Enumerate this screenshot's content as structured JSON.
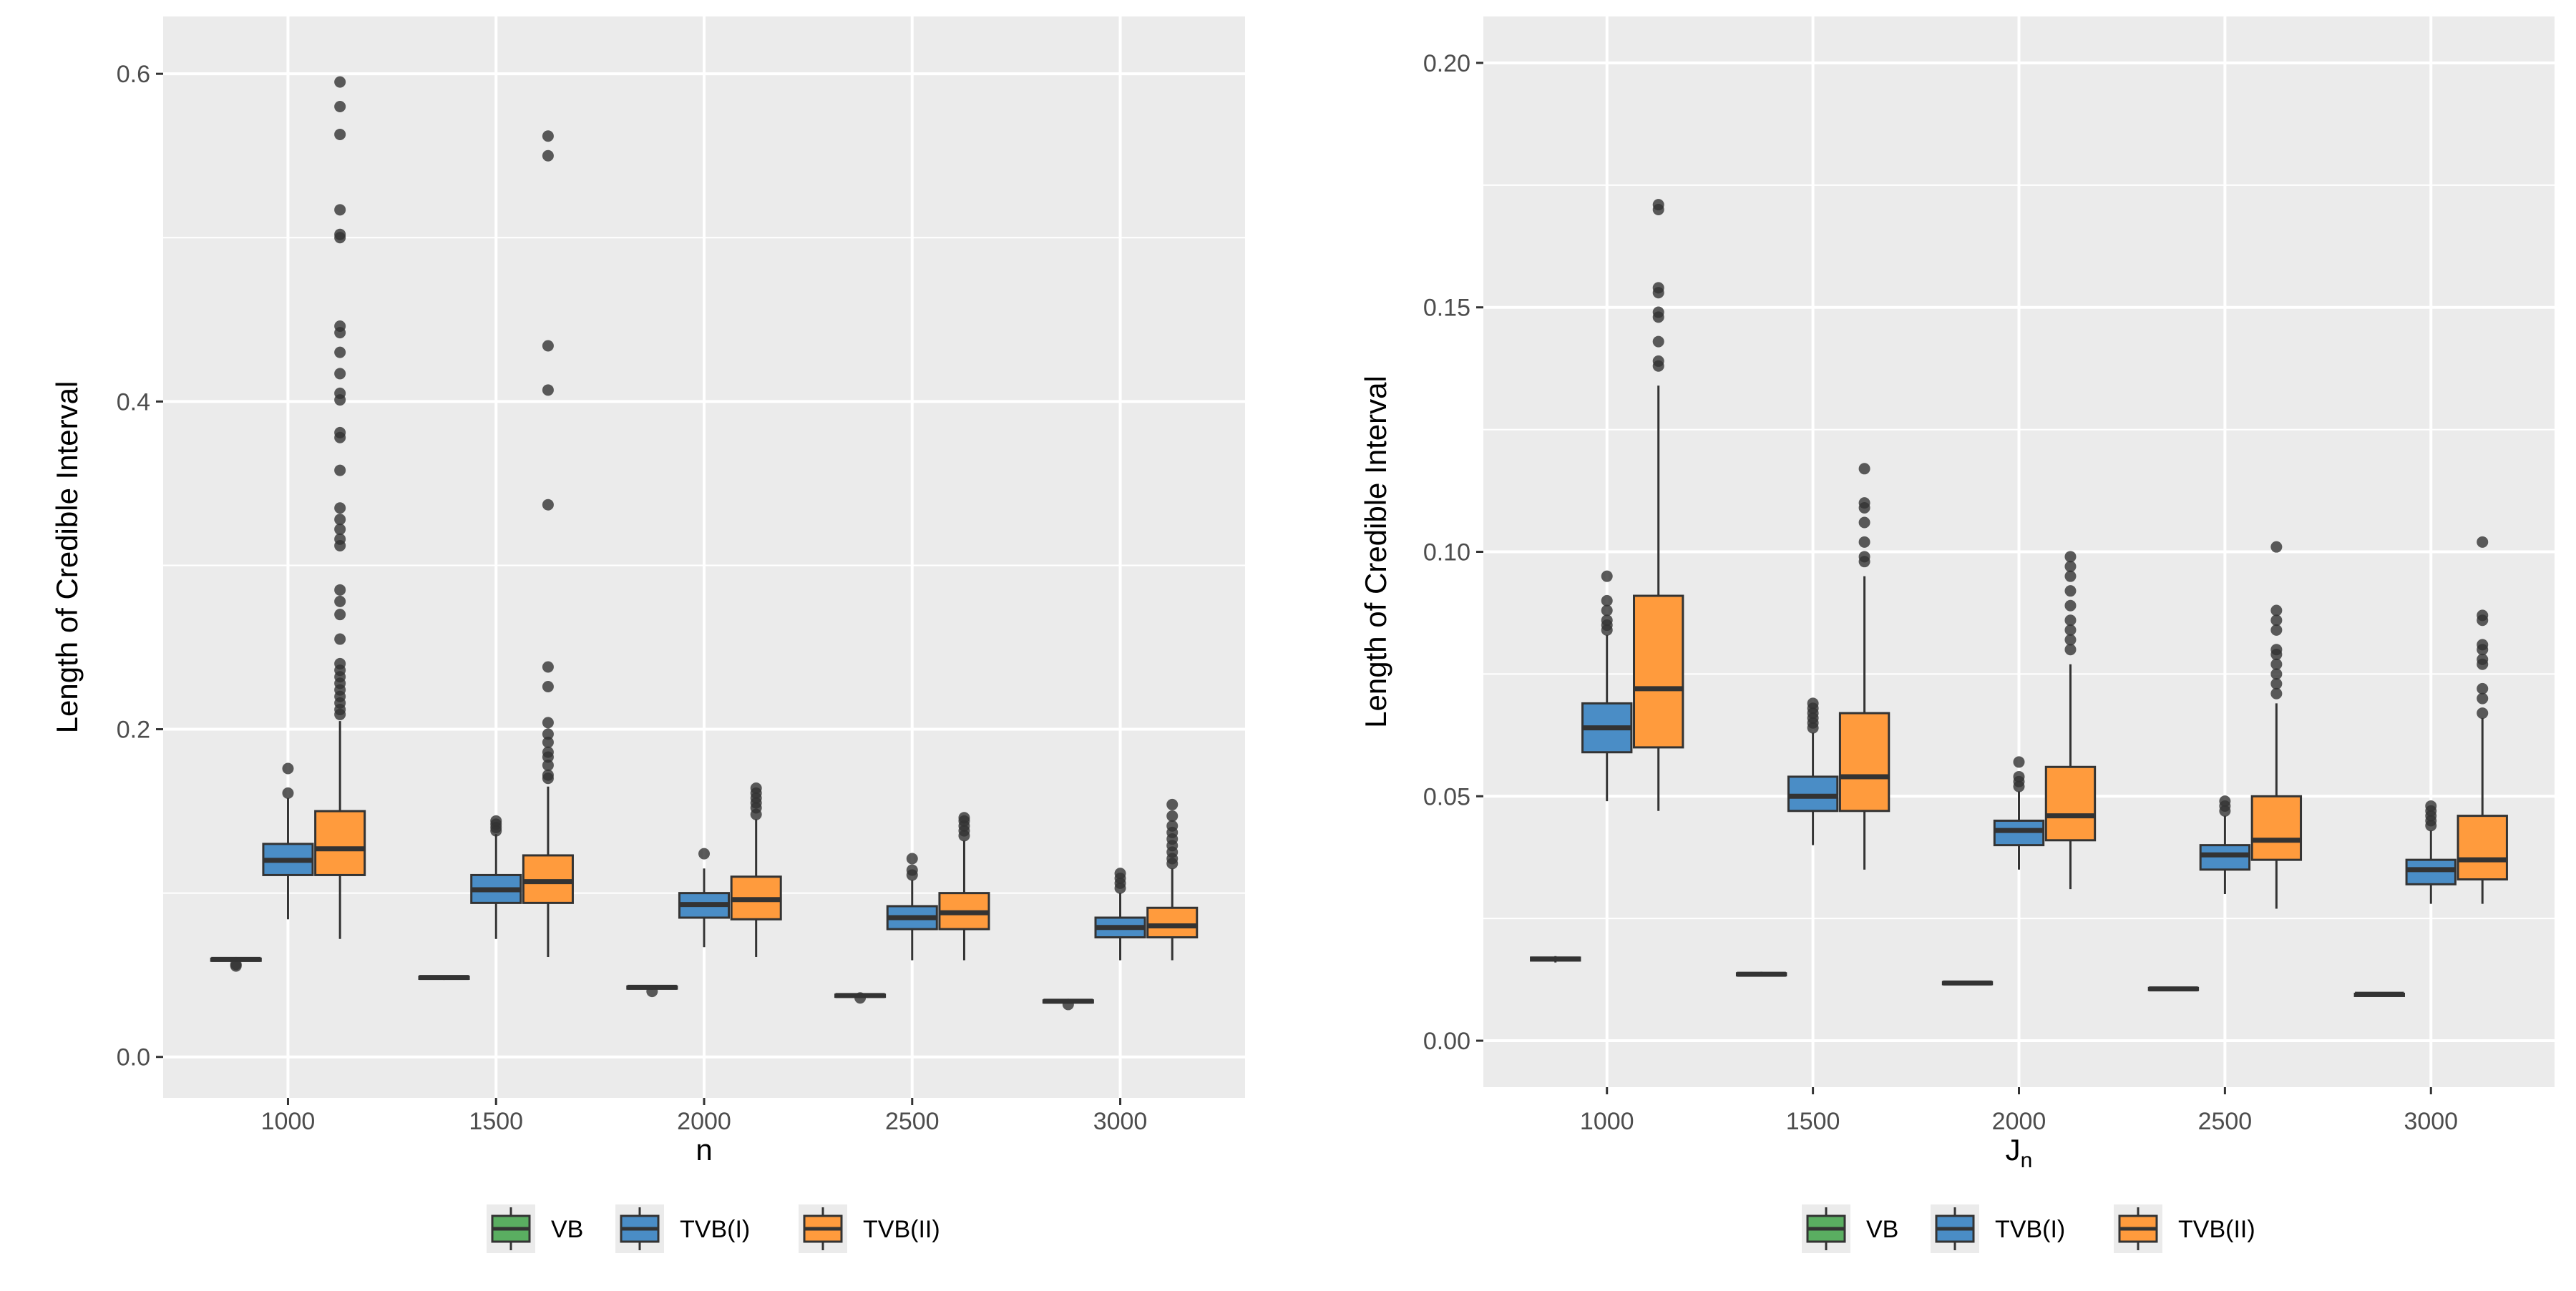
{
  "colors": {
    "panel_bg": "#EBEBEB",
    "grid": "#FFFFFF",
    "box_outline": "#333333",
    "outlier": "#333333",
    "tick_text": "#4D4D4D",
    "label_text": "#000000"
  },
  "legend": {
    "items": [
      {
        "label": "VB",
        "color": "#5AAE61"
      },
      {
        "label": "TVB(I)",
        "color": "#4A8DC6"
      },
      {
        "label": "TVB(II)",
        "color": "#FF9B3D"
      }
    ]
  },
  "chart_data": [
    {
      "type": "boxplot",
      "xlabel": "n",
      "ylabel": "Length of Credible Interval",
      "ylim": [
        -0.025,
        0.635
      ],
      "yticks": [
        0.0,
        0.2,
        0.4,
        0.6
      ],
      "ytick_labels": [
        "0.0",
        "0.2",
        "0.4",
        "0.6"
      ],
      "categories": [
        "1000",
        "1500",
        "2000",
        "2500",
        "3000"
      ],
      "legend_position": "bottom",
      "grid": true,
      "series": [
        {
          "name": "VB",
          "boxes": [
            {
              "lower_whisker": 0.058,
              "q1": 0.059,
              "median": 0.0595,
              "q3": 0.06,
              "upper_whisker": 0.061,
              "outliers": [
                0.0555,
                0.0565
              ]
            },
            {
              "lower_whisker": 0.047,
              "q1": 0.048,
              "median": 0.0485,
              "q3": 0.049,
              "upper_whisker": 0.0495,
              "outliers": []
            },
            {
              "lower_whisker": 0.041,
              "q1": 0.042,
              "median": 0.0425,
              "q3": 0.043,
              "upper_whisker": 0.0435,
              "outliers": [
                0.04
              ]
            },
            {
              "lower_whisker": 0.036,
              "q1": 0.037,
              "median": 0.0375,
              "q3": 0.038,
              "upper_whisker": 0.0385,
              "outliers": [
                0.036
              ]
            },
            {
              "lower_whisker": 0.033,
              "q1": 0.0335,
              "median": 0.034,
              "q3": 0.0345,
              "upper_whisker": 0.035,
              "outliers": [
                0.032
              ]
            }
          ]
        },
        {
          "name": "TVB(I)",
          "boxes": [
            {
              "lower_whisker": 0.084,
              "q1": 0.111,
              "median": 0.12,
              "q3": 0.13,
              "upper_whisker": 0.158,
              "outliers": [
                0.161,
                0.176
              ]
            },
            {
              "lower_whisker": 0.072,
              "q1": 0.094,
              "median": 0.102,
              "q3": 0.111,
              "upper_whisker": 0.136,
              "outliers": [
                0.138,
                0.14,
                0.142,
                0.144
              ]
            },
            {
              "lower_whisker": 0.067,
              "q1": 0.085,
              "median": 0.093,
              "q3": 0.1,
              "upper_whisker": 0.115,
              "outliers": [
                0.124
              ]
            },
            {
              "lower_whisker": 0.059,
              "q1": 0.078,
              "median": 0.085,
              "q3": 0.092,
              "upper_whisker": 0.108,
              "outliers": [
                0.111,
                0.114,
                0.121
              ]
            },
            {
              "lower_whisker": 0.059,
              "q1": 0.073,
              "median": 0.079,
              "q3": 0.085,
              "upper_whisker": 0.1,
              "outliers": [
                0.103,
                0.106,
                0.109,
                0.112
              ]
            }
          ]
        },
        {
          "name": "TVB(II)",
          "boxes": [
            {
              "lower_whisker": 0.072,
              "q1": 0.111,
              "median": 0.127,
              "q3": 0.15,
              "upper_whisker": 0.205,
              "outliers": [
                0.209,
                0.212,
                0.216,
                0.22,
                0.224,
                0.228,
                0.232,
                0.236,
                0.24,
                0.255,
                0.27,
                0.278,
                0.285,
                0.312,
                0.316,
                0.322,
                0.328,
                0.335,
                0.358,
                0.378,
                0.381,
                0.401,
                0.405,
                0.417,
                0.43,
                0.442,
                0.446,
                0.5,
                0.502,
                0.517,
                0.563,
                0.58,
                0.595
              ]
            },
            {
              "lower_whisker": 0.061,
              "q1": 0.094,
              "median": 0.107,
              "q3": 0.123,
              "upper_whisker": 0.165,
              "outliers": [
                0.17,
                0.172,
                0.178,
                0.183,
                0.186,
                0.192,
                0.197,
                0.204,
                0.226,
                0.238,
                0.337,
                0.407,
                0.434,
                0.55,
                0.562
              ]
            },
            {
              "lower_whisker": 0.061,
              "q1": 0.084,
              "median": 0.096,
              "q3": 0.11,
              "upper_whisker": 0.145,
              "outliers": [
                0.148,
                0.152,
                0.155,
                0.158,
                0.161,
                0.164
              ]
            },
            {
              "lower_whisker": 0.059,
              "q1": 0.078,
              "median": 0.088,
              "q3": 0.1,
              "upper_whisker": 0.132,
              "outliers": [
                0.135,
                0.138,
                0.141,
                0.144,
                0.146
              ]
            },
            {
              "lower_whisker": 0.059,
              "q1": 0.073,
              "median": 0.08,
              "q3": 0.091,
              "upper_whisker": 0.115,
              "outliers": [
                0.118,
                0.121,
                0.125,
                0.129,
                0.133,
                0.137,
                0.141,
                0.147,
                0.154
              ]
            }
          ]
        }
      ]
    },
    {
      "type": "boxplot",
      "xlabel": "J",
      "xlabel_subscript": "n",
      "ylabel": "Length of Credible Interval",
      "ylim": [
        -0.0095,
        0.2095
      ],
      "yticks": [
        0.0,
        0.05,
        0.1,
        0.15,
        0.2
      ],
      "ytick_labels": [
        "0.00",
        "0.05",
        "0.10",
        "0.15",
        "0.20"
      ],
      "categories": [
        "1000",
        "1500",
        "2000",
        "2500",
        "3000"
      ],
      "legend_position": "bottom",
      "grid": true,
      "series": [
        {
          "name": "VB",
          "boxes": [
            {
              "lower_whisker": 0.016,
              "q1": 0.0164,
              "median": 0.0167,
              "q3": 0.017,
              "upper_whisker": 0.0173,
              "outliers": []
            },
            {
              "lower_whisker": 0.0131,
              "q1": 0.0134,
              "median": 0.0136,
              "q3": 0.0138,
              "upper_whisker": 0.0141,
              "outliers": []
            },
            {
              "lower_whisker": 0.0114,
              "q1": 0.0116,
              "median": 0.0118,
              "q3": 0.012,
              "upper_whisker": 0.0122,
              "outliers": []
            },
            {
              "lower_whisker": 0.0102,
              "q1": 0.0104,
              "median": 0.0106,
              "q3": 0.0108,
              "upper_whisker": 0.011,
              "outliers": []
            },
            {
              "lower_whisker": 0.0092,
              "q1": 0.0094,
              "median": 0.0095,
              "q3": 0.0096,
              "upper_whisker": 0.0098,
              "outliers": []
            }
          ]
        },
        {
          "name": "TVB(I)",
          "boxes": [
            {
              "lower_whisker": 0.049,
              "q1": 0.059,
              "median": 0.064,
              "q3": 0.069,
              "upper_whisker": 0.083,
              "outliers": [
                0.084,
                0.085,
                0.086,
                0.088,
                0.09,
                0.095
              ]
            },
            {
              "lower_whisker": 0.04,
              "q1": 0.047,
              "median": 0.05,
              "q3": 0.054,
              "upper_whisker": 0.063,
              "outliers": [
                0.064,
                0.065,
                0.066,
                0.067,
                0.068,
                0.069
              ]
            },
            {
              "lower_whisker": 0.035,
              "q1": 0.04,
              "median": 0.043,
              "q3": 0.045,
              "upper_whisker": 0.051,
              "outliers": [
                0.052,
                0.053,
                0.054,
                0.057
              ]
            },
            {
              "lower_whisker": 0.03,
              "q1": 0.035,
              "median": 0.038,
              "q3": 0.04,
              "upper_whisker": 0.046,
              "outliers": [
                0.047,
                0.048,
                0.049
              ]
            },
            {
              "lower_whisker": 0.028,
              "q1": 0.032,
              "median": 0.035,
              "q3": 0.037,
              "upper_whisker": 0.043,
              "outliers": [
                0.044,
                0.045,
                0.046,
                0.047,
                0.048
              ]
            }
          ]
        },
        {
          "name": "TVB(II)",
          "boxes": [
            {
              "lower_whisker": 0.047,
              "q1": 0.06,
              "median": 0.072,
              "q3": 0.091,
              "upper_whisker": 0.134,
              "outliers": [
                0.138,
                0.139,
                0.143,
                0.148,
                0.149,
                0.153,
                0.154,
                0.17,
                0.171
              ]
            },
            {
              "lower_whisker": 0.035,
              "q1": 0.047,
              "median": 0.054,
              "q3": 0.067,
              "upper_whisker": 0.095,
              "outliers": [
                0.098,
                0.099,
                0.102,
                0.106,
                0.109,
                0.11,
                0.117
              ]
            },
            {
              "lower_whisker": 0.031,
              "q1": 0.041,
              "median": 0.046,
              "q3": 0.056,
              "upper_whisker": 0.077,
              "outliers": [
                0.08,
                0.082,
                0.084,
                0.086,
                0.089,
                0.092,
                0.095,
                0.097,
                0.099
              ]
            },
            {
              "lower_whisker": 0.027,
              "q1": 0.037,
              "median": 0.041,
              "q3": 0.05,
              "upper_whisker": 0.069,
              "outliers": [
                0.071,
                0.073,
                0.075,
                0.077,
                0.079,
                0.08,
                0.084,
                0.086,
                0.088,
                0.101
              ]
            },
            {
              "lower_whisker": 0.028,
              "q1": 0.033,
              "median": 0.037,
              "q3": 0.046,
              "upper_whisker": 0.066,
              "outliers": [
                0.067,
                0.07,
                0.072,
                0.077,
                0.078,
                0.08,
                0.081,
                0.086,
                0.087,
                0.102
              ]
            }
          ]
        }
      ]
    }
  ]
}
